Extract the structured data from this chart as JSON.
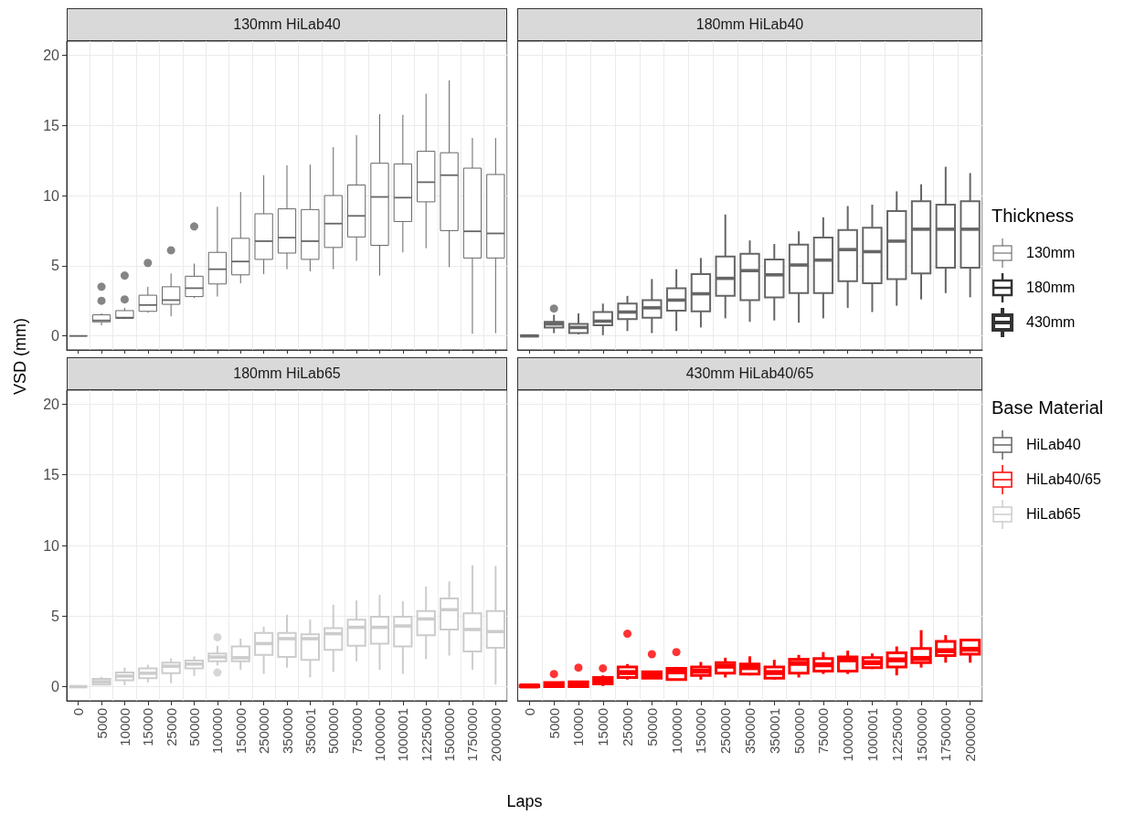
{
  "chart_data": [
    {
      "type": "box",
      "title": "130mm HiLab40",
      "ylabel": "VSD (mm)",
      "categories": [
        "0",
        "5000",
        "10000",
        "15000",
        "25000",
        "50000",
        "100000",
        "150000",
        "250000",
        "350000",
        "350001",
        "500000",
        "750000",
        "1000000",
        "1000001",
        "1225000",
        "1500000",
        "1750000",
        "2000000"
      ],
      "ylim": [
        -1,
        21
      ],
      "yticks": [
        0,
        5,
        10,
        15,
        20
      ],
      "grid": true,
      "tick_labels": "y",
      "series": [
        {
          "color": "#666666",
          "boxes": [
            {
              "low": 0,
              "q1": 0,
              "median": 0,
              "q3": 0,
              "high": 0
            },
            {
              "low": 0.75,
              "q1": 1.0,
              "median": 1.1,
              "q3": 1.5,
              "high": 1.6,
              "outliers": [
                3.5,
                2.5
              ]
            },
            {
              "low": 1.2,
              "q1": 1.25,
              "median": 1.3,
              "q3": 1.8,
              "high": 2.0,
              "outliers": [
                4.3,
                2.6
              ]
            },
            {
              "low": 1.65,
              "q1": 1.75,
              "median": 2.2,
              "q3": 2.9,
              "high": 3.5,
              "outliers": [
                5.2
              ]
            },
            {
              "low": 1.4,
              "q1": 2.25,
              "median": 2.55,
              "q3": 3.5,
              "high": 4.45,
              "outliers": [
                6.1
              ]
            },
            {
              "low": 2.7,
              "q1": 2.8,
              "median": 3.4,
              "q3": 4.25,
              "high": 5.15,
              "outliers": [
                7.8
              ]
            },
            {
              "low": 2.8,
              "q1": 3.7,
              "median": 4.75,
              "q3": 5.95,
              "high": 9.2
            },
            {
              "low": 3.75,
              "q1": 4.35,
              "median": 5.3,
              "q3": 6.95,
              "high": 10.25
            },
            {
              "low": 4.4,
              "q1": 5.45,
              "median": 6.75,
              "q3": 8.7,
              "high": 11.45
            },
            {
              "low": 4.75,
              "q1": 5.9,
              "median": 7.0,
              "q3": 9.05,
              "high": 12.15
            },
            {
              "low": 4.6,
              "q1": 5.45,
              "median": 6.75,
              "q3": 9.0,
              "high": 12.2
            },
            {
              "low": 4.75,
              "q1": 6.3,
              "median": 8.0,
              "q3": 10.0,
              "high": 13.45
            },
            {
              "low": 5.35,
              "q1": 7.05,
              "median": 8.55,
              "q3": 10.75,
              "high": 14.3
            },
            {
              "low": 4.3,
              "q1": 6.45,
              "median": 9.9,
              "q3": 12.3,
              "high": 15.8
            },
            {
              "low": 5.95,
              "q1": 8.15,
              "median": 9.85,
              "q3": 12.25,
              "high": 15.75
            },
            {
              "low": 6.25,
              "q1": 9.55,
              "median": 10.95,
              "q3": 13.15,
              "high": 17.25
            },
            {
              "low": 4.9,
              "q1": 7.5,
              "median": 11.45,
              "q3": 13.05,
              "high": 18.2
            },
            {
              "low": 0.15,
              "q1": 5.55,
              "median": 7.45,
              "q3": 11.95,
              "high": 14.1
            },
            {
              "low": 0.2,
              "q1": 5.55,
              "median": 7.3,
              "q3": 11.5,
              "high": 14.1
            }
          ]
        }
      ]
    },
    {
      "type": "box",
      "title": "180mm HiLab40",
      "categories": [
        "0",
        "5000",
        "10000",
        "15000",
        "25000",
        "50000",
        "100000",
        "150000",
        "250000",
        "350000",
        "350001",
        "500000",
        "750000",
        "1000000",
        "1000001",
        "1225000",
        "1500000",
        "1750000",
        "2000000"
      ],
      "ylim": [
        -1,
        21
      ],
      "yticks": [
        0,
        5,
        10,
        15,
        20
      ],
      "grid": true,
      "tick_labels": false,
      "series": [
        {
          "color": "#666666",
          "boxes": [
            {
              "low": 0,
              "q1": 0,
              "median": 0,
              "q3": 0,
              "high": 0
            },
            {
              "low": 0.2,
              "q1": 0.6,
              "median": 0.85,
              "q3": 1.0,
              "high": 1.5,
              "outliers": [
                1.95
              ]
            },
            {
              "low": 0.1,
              "q1": 0.2,
              "median": 0.6,
              "q3": 0.85,
              "high": 1.6
            },
            {
              "low": 0.05,
              "q1": 0.75,
              "median": 1.05,
              "q3": 1.7,
              "high": 2.3
            },
            {
              "low": 0.35,
              "q1": 1.2,
              "median": 1.7,
              "q3": 2.3,
              "high": 2.85
            },
            {
              "low": 0.2,
              "q1": 1.3,
              "median": 2.0,
              "q3": 2.55,
              "high": 4.05
            },
            {
              "low": 0.35,
              "q1": 1.8,
              "median": 2.55,
              "q3": 3.4,
              "high": 4.75
            },
            {
              "low": 0.6,
              "q1": 1.75,
              "median": 3.0,
              "q3": 4.4,
              "high": 5.55
            },
            {
              "low": 1.25,
              "q1": 2.85,
              "median": 4.1,
              "q3": 5.65,
              "high": 8.65
            },
            {
              "low": 1.0,
              "q1": 2.55,
              "median": 4.65,
              "q3": 5.85,
              "high": 6.8
            },
            {
              "low": 1.1,
              "q1": 2.75,
              "median": 4.35,
              "q3": 5.45,
              "high": 6.55
            },
            {
              "low": 0.95,
              "q1": 3.05,
              "median": 5.05,
              "q3": 6.5,
              "high": 7.45
            },
            {
              "low": 1.25,
              "q1": 3.05,
              "median": 5.4,
              "q3": 7.0,
              "high": 8.45
            },
            {
              "low": 2.0,
              "q1": 3.9,
              "median": 6.15,
              "q3": 7.55,
              "high": 9.25
            },
            {
              "low": 1.7,
              "q1": 3.75,
              "median": 6.0,
              "q3": 7.7,
              "high": 9.35
            },
            {
              "low": 2.15,
              "q1": 4.05,
              "median": 6.75,
              "q3": 8.9,
              "high": 10.3
            },
            {
              "low": 2.6,
              "q1": 4.45,
              "median": 7.6,
              "q3": 9.6,
              "high": 10.8
            },
            {
              "low": 3.05,
              "q1": 4.85,
              "median": 7.6,
              "q3": 9.35,
              "high": 12.05
            },
            {
              "low": 2.75,
              "q1": 4.85,
              "median": 7.6,
              "q3": 9.6,
              "high": 11.6
            }
          ]
        }
      ]
    },
    {
      "type": "box",
      "title": "180mm HiLab65",
      "xlabel": "Laps",
      "categories": [
        "0",
        "5000",
        "10000",
        "15000",
        "25000",
        "50000",
        "100000",
        "150000",
        "250000",
        "350000",
        "350001",
        "500000",
        "750000",
        "1000000",
        "1000001",
        "1225000",
        "1500000",
        "1750000",
        "2000000"
      ],
      "ylim": [
        -1,
        21
      ],
      "yticks": [
        0,
        5,
        10,
        15,
        20
      ],
      "grid": true,
      "series": [
        {
          "color": "#cccccc",
          "boxes": [
            {
              "low": 0,
              "q1": 0,
              "median": 0,
              "q3": 0,
              "high": 0
            },
            {
              "low": 0.1,
              "q1": 0.15,
              "median": 0.35,
              "q3": 0.55,
              "high": 0.7
            },
            {
              "low": 0.1,
              "q1": 0.45,
              "median": 0.75,
              "q3": 1.0,
              "high": 1.35
            },
            {
              "low": 0.3,
              "q1": 0.6,
              "median": 0.95,
              "q3": 1.3,
              "high": 1.55
            },
            {
              "low": 0.25,
              "q1": 0.95,
              "median": 1.45,
              "q3": 1.7,
              "high": 2.0
            },
            {
              "low": 0.75,
              "q1": 1.3,
              "median": 1.6,
              "q3": 1.85,
              "high": 2.15
            },
            {
              "low": 1.5,
              "q1": 1.8,
              "median": 2.1,
              "q3": 2.35,
              "high": 2.9,
              "outliers": [
                3.5,
                1.0
              ]
            },
            {
              "low": 1.2,
              "q1": 1.8,
              "median": 2.05,
              "q3": 2.85,
              "high": 3.4
            },
            {
              "low": 0.9,
              "q1": 2.25,
              "median": 3.05,
              "q3": 3.8,
              "high": 4.25
            },
            {
              "low": 1.35,
              "q1": 2.1,
              "median": 3.4,
              "q3": 3.8,
              "high": 5.1
            },
            {
              "low": 0.65,
              "q1": 1.9,
              "median": 3.4,
              "q3": 3.7,
              "high": 4.75
            },
            {
              "low": 1.05,
              "q1": 2.6,
              "median": 3.75,
              "q3": 4.15,
              "high": 5.8
            },
            {
              "low": 1.8,
              "q1": 2.9,
              "median": 4.2,
              "q3": 4.75,
              "high": 6.1
            },
            {
              "low": 1.2,
              "q1": 3.05,
              "median": 4.2,
              "q3": 4.95,
              "high": 6.5
            },
            {
              "low": 0.9,
              "q1": 2.85,
              "median": 4.3,
              "q3": 4.95,
              "high": 6.05
            },
            {
              "low": 1.95,
              "q1": 3.65,
              "median": 4.8,
              "q3": 5.35,
              "high": 7.1
            },
            {
              "low": 2.2,
              "q1": 4.05,
              "median": 5.45,
              "q3": 6.25,
              "high": 7.45
            },
            {
              "low": 1.2,
              "q1": 2.5,
              "median": 4.05,
              "q3": 5.2,
              "high": 8.6
            },
            {
              "low": 0.15,
              "q1": 2.75,
              "median": 3.9,
              "q3": 5.35,
              "high": 8.55
            }
          ]
        }
      ]
    },
    {
      "type": "box",
      "title": "430mm HiLab40/65",
      "categories": [
        "0",
        "5000",
        "10000",
        "15000",
        "25000",
        "50000",
        "100000",
        "150000",
        "250000",
        "350000",
        "350001",
        "500000",
        "750000",
        "1000000",
        "1000001",
        "1225000",
        "1500000",
        "1750000",
        "2000000"
      ],
      "ylim": [
        -1,
        21
      ],
      "yticks": [
        0,
        5,
        10,
        15,
        20
      ],
      "grid": true,
      "tick_labels": "x",
      "series": [
        {
          "color": "#ff0000",
          "boxes": [
            {
              "low": 0,
              "q1": 0,
              "median": 0.05,
              "q3": 0.1,
              "high": 0.15
            },
            {
              "low": 0,
              "q1": 0,
              "median": 0.1,
              "q3": 0.3,
              "high": 0.35,
              "outliers": [
                0.9
              ]
            },
            {
              "low": 0,
              "q1": 0,
              "median": 0.15,
              "q3": 0.35,
              "high": 0.4,
              "outliers": [
                1.35
              ]
            },
            {
              "low": 0.05,
              "q1": 0.2,
              "median": 0.4,
              "q3": 0.65,
              "high": 0.8,
              "outliers": [
                1.3
              ]
            },
            {
              "low": 0.5,
              "q1": 0.65,
              "median": 1.0,
              "q3": 1.4,
              "high": 1.6,
              "outliers": [
                3.75
              ]
            },
            {
              "low": 0.6,
              "q1": 0.6,
              "median": 0.85,
              "q3": 1.05,
              "high": 1.05,
              "outliers": [
                2.3
              ]
            },
            {
              "low": 0.45,
              "q1": 0.5,
              "median": 1.05,
              "q3": 1.3,
              "high": 1.4,
              "outliers": [
                2.45
              ]
            },
            {
              "low": 0.5,
              "q1": 0.8,
              "median": 1.1,
              "q3": 1.4,
              "high": 1.75
            },
            {
              "low": 0.65,
              "q1": 0.95,
              "median": 1.45,
              "q3": 1.7,
              "high": 2.05
            },
            {
              "low": 0.8,
              "q1": 0.9,
              "median": 1.35,
              "q3": 1.6,
              "high": 2.15
            },
            {
              "low": 0.5,
              "q1": 0.6,
              "median": 1.0,
              "q3": 1.4,
              "high": 1.9
            },
            {
              "low": 0.65,
              "q1": 0.95,
              "median": 1.65,
              "q3": 1.95,
              "high": 2.25
            },
            {
              "low": 0.9,
              "q1": 1.1,
              "median": 1.55,
              "q3": 2.0,
              "high": 2.45
            },
            {
              "low": 0.9,
              "q1": 1.1,
              "median": 1.9,
              "q3": 2.1,
              "high": 2.55
            },
            {
              "low": 1.25,
              "q1": 1.35,
              "median": 1.7,
              "q3": 2.05,
              "high": 2.35
            },
            {
              "low": 0.8,
              "q1": 1.4,
              "median": 1.9,
              "q3": 2.4,
              "high": 2.85
            },
            {
              "low": 1.35,
              "q1": 1.7,
              "median": 2.0,
              "q3": 2.7,
              "high": 4.0
            },
            {
              "low": 1.7,
              "q1": 2.2,
              "median": 2.55,
              "q3": 3.2,
              "high": 3.65
            },
            {
              "low": 1.7,
              "q1": 2.3,
              "median": 2.65,
              "q3": 3.3,
              "high": 3.3
            }
          ]
        }
      ]
    },
    {
      "type": "other",
      "legend_title": "Thickness",
      "categories": [
        "130mm",
        "180mm",
        "430mm"
      ],
      "colors": [
        "#595959",
        "#333333",
        "#333333"
      ]
    },
    {
      "type": "other",
      "legend_title": "Base Material",
      "categories": [
        "HiLab40",
        "HiLab40/65",
        "HiLab65"
      ],
      "colors": [
        "#666666",
        "#ff0000",
        "#cccccc"
      ]
    }
  ]
}
